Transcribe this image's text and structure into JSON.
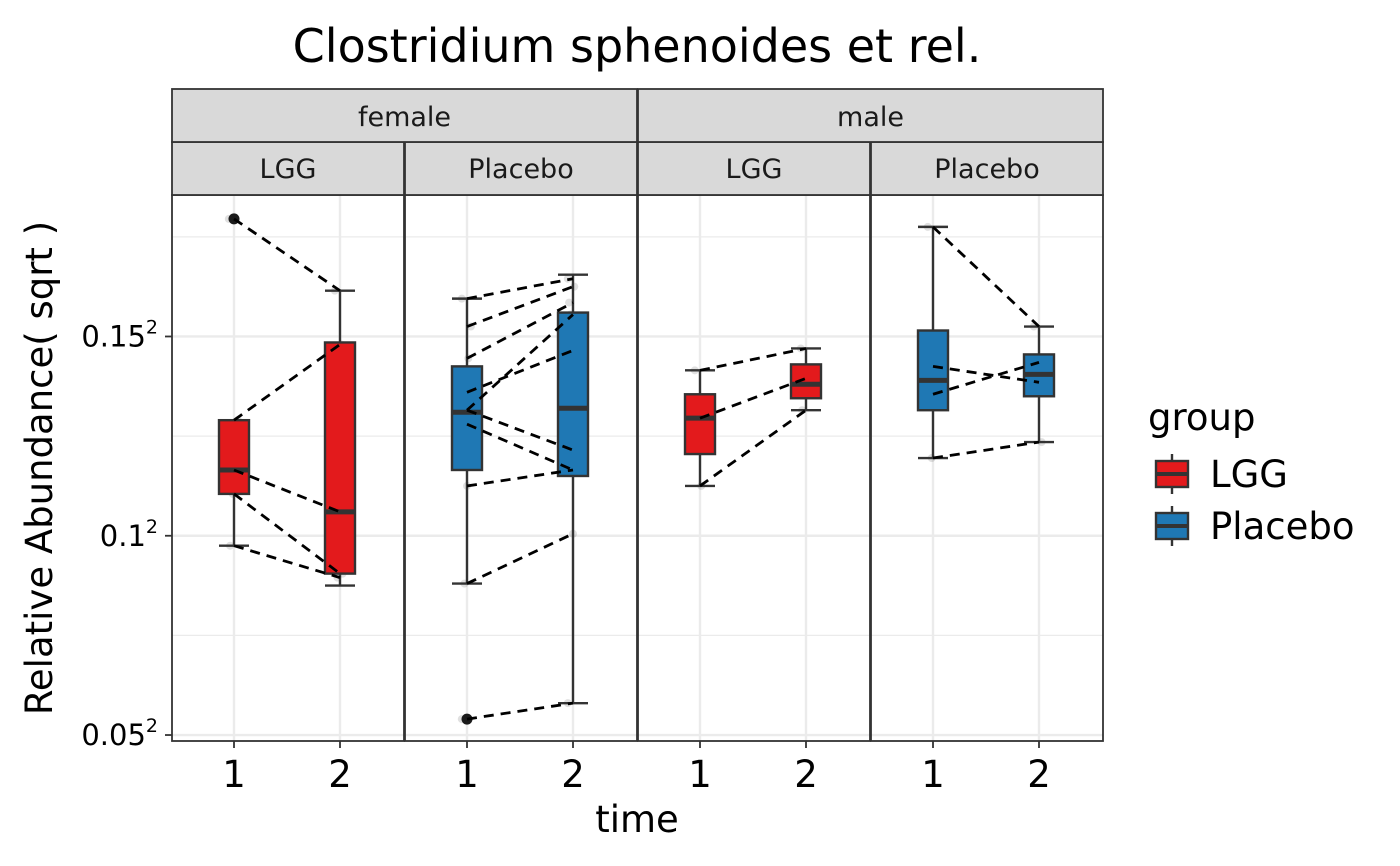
{
  "chart_data": {
    "type": "boxplot",
    "title": "Clostridium sphenoides et rel.",
    "xlabel": "time",
    "ylabel": "Relative Abundance( sqrt )",
    "y_scale": "sqrt",
    "y_ticks": [
      {
        "value": 0.0025,
        "base": "0.05",
        "exp": "2"
      },
      {
        "value": 0.01,
        "base": "0.1",
        "exp": "2"
      },
      {
        "value": 0.0225,
        "base": "0.15",
        "exp": "2"
      }
    ],
    "y_minor_ticks_sqrt": [
      0.075,
      0.125,
      0.175
    ],
    "y_range_sqrt": [
      0.0485,
      0.1855
    ],
    "x_categories": [
      "1",
      "2"
    ],
    "grid": true,
    "legend": {
      "title": "group",
      "position": "right",
      "items": [
        {
          "label": "LGG",
          "color": "#e31a1c"
        },
        {
          "label": "Placebo",
          "color": "#1f78b4"
        }
      ]
    },
    "facets_top": [
      {
        "label": "female"
      },
      {
        "label": "male"
      }
    ],
    "panels": [
      {
        "sex": "female",
        "group": "LGG",
        "color": "#e31a1c",
        "boxes": [
          {
            "time": "1",
            "q1": 0.1105,
            "median": 0.1165,
            "q3": 0.129,
            "whisker_low": 0.0975,
            "whisker_high": 0.129,
            "outliers": [
              0.1795
            ]
          },
          {
            "time": "2",
            "q1": 0.0905,
            "median": 0.106,
            "q3": 0.1485,
            "whisker_low": 0.0875,
            "whisker_high": 0.1615,
            "outliers": []
          }
        ],
        "pairs": [
          [
            0.1795,
            0.1615
          ],
          [
            0.129,
            0.148
          ],
          [
            0.1165,
            0.106
          ],
          [
            0.1105,
            0.0905
          ],
          [
            0.0975,
            0.0895
          ]
        ]
      },
      {
        "sex": "female",
        "group": "Placebo",
        "color": "#1f78b4",
        "boxes": [
          {
            "time": "1",
            "q1": 0.1165,
            "median": 0.131,
            "q3": 0.1425,
            "whisker_low": 0.088,
            "whisker_high": 0.1595,
            "outliers": [
              0.054
            ]
          },
          {
            "time": "2",
            "q1": 0.115,
            "median": 0.132,
            "q3": 0.156,
            "whisker_low": 0.058,
            "whisker_high": 0.1655,
            "outliers": []
          }
        ],
        "pairs": [
          [
            0.1595,
            0.1645
          ],
          [
            0.1525,
            0.1625
          ],
          [
            0.1445,
            0.1585
          ],
          [
            0.136,
            0.1465
          ],
          [
            0.1315,
            0.1555
          ],
          [
            0.128,
            0.1165
          ],
          [
            0.1315,
            0.1215
          ],
          [
            0.1125,
            0.1165
          ],
          [
            0.088,
            0.1005
          ],
          [
            0.054,
            0.058
          ]
        ]
      },
      {
        "sex": "male",
        "group": "LGG",
        "color": "#e31a1c",
        "boxes": [
          {
            "time": "1",
            "q1": 0.1205,
            "median": 0.1295,
            "q3": 0.1355,
            "whisker_low": 0.1125,
            "whisker_high": 0.1415,
            "outliers": []
          },
          {
            "time": "2",
            "q1": 0.1345,
            "median": 0.138,
            "q3": 0.143,
            "whisker_low": 0.1315,
            "whisker_high": 0.147,
            "outliers": []
          }
        ],
        "pairs": [
          [
            0.1415,
            0.147
          ],
          [
            0.1295,
            0.1395
          ],
          [
            0.1125,
            0.1315
          ]
        ]
      },
      {
        "sex": "male",
        "group": "Placebo",
        "color": "#1f78b4",
        "boxes": [
          {
            "time": "1",
            "q1": 0.1315,
            "median": 0.139,
            "q3": 0.1515,
            "whisker_low": 0.1195,
            "whisker_high": 0.1775,
            "outliers": []
          },
          {
            "time": "2",
            "q1": 0.135,
            "median": 0.1405,
            "q3": 0.1455,
            "whisker_low": 0.1235,
            "whisker_high": 0.1525,
            "outliers": []
          }
        ],
        "pairs": [
          [
            0.1775,
            0.1525
          ],
          [
            0.1425,
            0.1385
          ],
          [
            0.1355,
            0.1435
          ],
          [
            0.1195,
            0.1235
          ]
        ]
      }
    ]
  }
}
